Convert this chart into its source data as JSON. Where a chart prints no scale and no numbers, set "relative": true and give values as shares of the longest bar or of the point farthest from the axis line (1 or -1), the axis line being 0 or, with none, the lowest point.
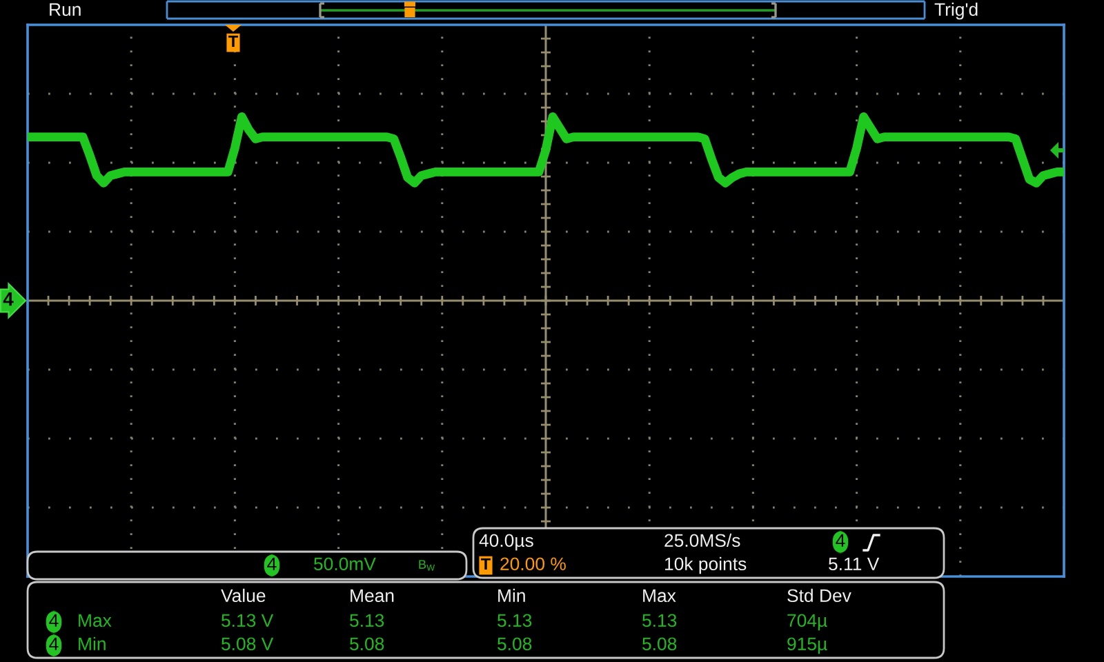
{
  "chart_data": {
    "type": "line",
    "relative": true,
    "grid": true,
    "tick_labels": false,
    "categories": [
      null,
      null,
      null,
      null,
      null,
      null,
      null,
      null,
      null,
      null,
      null,
      null,
      null,
      null,
      null,
      null,
      null,
      null,
      null,
      null,
      null,
      null,
      null,
      null,
      null,
      null,
      null,
      null,
      null,
      null,
      null,
      null,
      null,
      null,
      null,
      null,
      null,
      null,
      null,
      null,
      null,
      null,
      null,
      null,
      null,
      null,
      null,
      null,
      null,
      null,
      null,
      null,
      null,
      null,
      null,
      null,
      null,
      null,
      null,
      null,
      null,
      null,
      null,
      null,
      null,
      null,
      null,
      null,
      null,
      null,
      null,
      null,
      null,
      null,
      null,
      null,
      null,
      null,
      null,
      null,
      null,
      null,
      null,
      null,
      null,
      null,
      null,
      null,
      null,
      null,
      null,
      null,
      null,
      null,
      null,
      null,
      null,
      null,
      null,
      null,
      null,
      null,
      null,
      null,
      null,
      null,
      null,
      null,
      null,
      null,
      null,
      null,
      null,
      null,
      null,
      null,
      null,
      null,
      null,
      null,
      null,
      null,
      null,
      null,
      null,
      null,
      null,
      null,
      null,
      null,
      null,
      null,
      null,
      null,
      null,
      null,
      null,
      null,
      null,
      null,
      null,
      null,
      null,
      null,
      null,
      null,
      null,
      null,
      null,
      null,
      null
    ],
    "series": [
      {
        "color": "#1ec81e",
        "values": [
          0.89,
          0.89,
          0.89,
          0.89,
          0.89,
          0.89,
          0.89,
          0.89,
          0.89,
          0.79,
          0.68,
          0.64,
          0.68,
          0.69,
          0.7,
          0.7,
          0.7,
          0.7,
          0.7,
          0.7,
          0.7,
          0.7,
          0.7,
          0.7,
          0.7,
          0.7,
          0.7,
          0.7,
          0.7,
          0.7,
          0.83,
          1.0,
          0.93,
          0.88,
          0.89,
          0.89,
          0.89,
          0.89,
          0.89,
          0.89,
          0.89,
          0.89,
          0.89,
          0.89,
          0.89,
          0.89,
          0.89,
          0.89,
          0.89,
          0.89,
          0.89,
          0.89,
          0.89,
          0.88,
          0.78,
          0.67,
          0.64,
          0.68,
          0.69,
          0.7,
          0.7,
          0.7,
          0.7,
          0.7,
          0.7,
          0.7,
          0.7,
          0.7,
          0.7,
          0.7,
          0.7,
          0.7,
          0.7,
          0.7,
          0.7,
          0.82,
          1.0,
          0.94,
          0.88,
          0.89,
          0.89,
          0.89,
          0.89,
          0.89,
          0.89,
          0.89,
          0.89,
          0.89,
          0.89,
          0.89,
          0.89,
          0.89,
          0.89,
          0.89,
          0.89,
          0.89,
          0.89,
          0.89,
          0.88,
          0.77,
          0.67,
          0.64,
          0.67,
          0.69,
          0.7,
          0.7,
          0.7,
          0.7,
          0.7,
          0.7,
          0.7,
          0.7,
          0.7,
          0.7,
          0.7,
          0.7,
          0.7,
          0.7,
          0.7,
          0.7,
          0.83,
          1.0,
          0.94,
          0.88,
          0.89,
          0.89,
          0.89,
          0.89,
          0.89,
          0.89,
          0.89,
          0.89,
          0.89,
          0.89,
          0.89,
          0.89,
          0.89,
          0.89,
          0.89,
          0.89,
          0.89,
          0.89,
          0.89,
          0.88,
          0.77,
          0.66,
          0.64,
          0.68,
          0.69,
          0.7,
          0.7
        ]
      }
    ],
    "annotations": [
      "Run",
      "Trig'd",
      "T",
      "4",
      "4",
      "50.0mV",
      "B$_{W}$",
      "40.0µs",
      "25.0MS/s",
      "4",
      "T",
      "20.00 %",
      "10k points",
      "5.11 V",
      "Value",
      "Mean",
      "Min",
      "Max",
      "Std Dev",
      "4",
      "Max",
      "5.13 V",
      "5.13",
      "5.13",
      "5.13",
      "704µ",
      "4",
      "Min",
      "5.08 V",
      "5.08",
      "5.08",
      "5.08",
      "915µ"
    ]
  }
}
